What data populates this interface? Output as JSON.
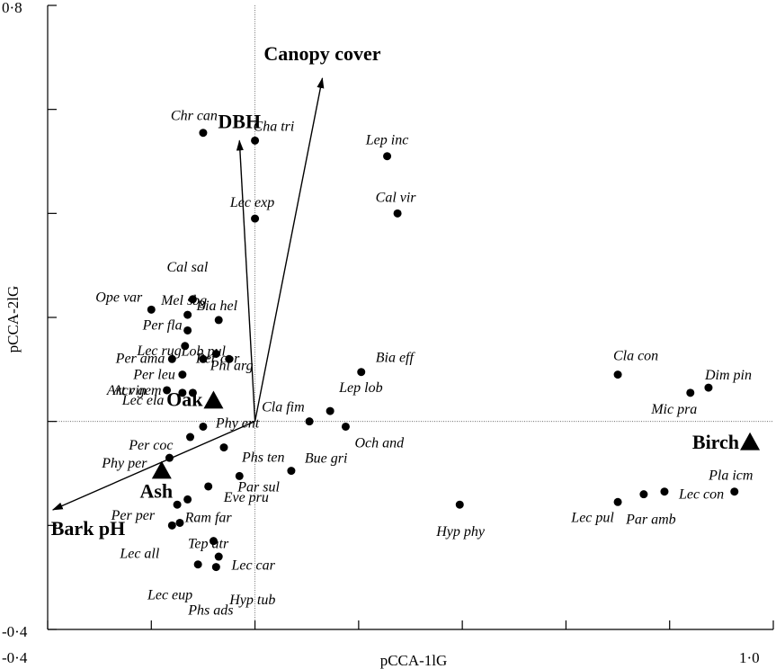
{
  "chart_data": {
    "type": "scatter",
    "xlabel": "pCCA-1lG",
    "ylabel": "pCCA-2lG",
    "xlim": [
      -0.4,
      1.0
    ],
    "ylim": [
      -0.4,
      0.8
    ],
    "x_tick_labels": [
      "-0·4",
      "1·0"
    ],
    "y_tick_labels": [
      "0·8",
      "-0·4"
    ],
    "x_ticks": [
      -0.4,
      -0.2,
      0.0,
      0.2,
      0.4,
      0.6,
      0.8,
      1.0
    ],
    "y_ticks": [
      -0.4,
      -0.2,
      0.0,
      0.2,
      0.4,
      0.6,
      0.8
    ],
    "reference_lines": {
      "x": 0,
      "y": 0
    },
    "species": [
      {
        "label": "Chr can",
        "x": -0.1,
        "y": 0.555
      },
      {
        "label": "Cha tri",
        "x": 0.0,
        "y": 0.54
      },
      {
        "label": "Lep inc",
        "x": 0.255,
        "y": 0.51
      },
      {
        "label": "Lec exp",
        "x": 0.0,
        "y": 0.39
      },
      {
        "label": "Cal vir",
        "x": 0.275,
        "y": 0.4
      },
      {
        "label": "Cal sal",
        "x": -0.12,
        "y": 0.235
      },
      {
        "label": "Mel sbg",
        "x": -0.13,
        "y": 0.205
      },
      {
        "label": "Ope var",
        "x": -0.2,
        "y": 0.215
      },
      {
        "label": "Per fla",
        "x": -0.13,
        "y": 0.175
      },
      {
        "label": "Bia hel",
        "x": -0.07,
        "y": 0.195
      },
      {
        "label": "Lec rug",
        "x": -0.135,
        "y": 0.145
      },
      {
        "label": "Lob pul",
        "x": -0.075,
        "y": 0.13
      },
      {
        "label": "Per ama",
        "x": -0.16,
        "y": 0.12
      },
      {
        "label": "Per cor",
        "x": -0.1,
        "y": 0.12
      },
      {
        "label": "Phl arg",
        "x": -0.05,
        "y": 0.12
      },
      {
        "label": "Per leu",
        "x": -0.14,
        "y": 0.09
      },
      {
        "label": "Acr gem",
        "x": -0.17,
        "y": 0.06
      },
      {
        "label": "Art vin",
        "x": -0.14,
        "y": 0.055
      },
      {
        "label": "Lec ela",
        "x": -0.12,
        "y": 0.055
      },
      {
        "label": "Bia eff",
        "x": 0.205,
        "y": 0.095
      },
      {
        "label": "Lep lob",
        "x": 0.145,
        "y": 0.02
      },
      {
        "label": "Cla fim",
        "x": 0.105,
        "y": 0.0
      },
      {
        "label": "Och and",
        "x": 0.175,
        "y": -0.01
      },
      {
        "label": "Phy ent",
        "x": -0.1,
        "y": -0.01
      },
      {
        "label": "Per coc",
        "x": -0.125,
        "y": -0.03
      },
      {
        "label": "Phy per",
        "x": -0.165,
        "y": -0.07
      },
      {
        "label": "Phs ten",
        "x": -0.06,
        "y": -0.05
      },
      {
        "label": "Bue gri",
        "x": 0.07,
        "y": -0.095
      },
      {
        "label": "Par sul",
        "x": -0.03,
        "y": -0.105
      },
      {
        "label": "Eve pru",
        "x": -0.09,
        "y": -0.125
      },
      {
        "label": "Ram far",
        "x": -0.13,
        "y": -0.15
      },
      {
        "label": "Per per",
        "x": -0.15,
        "y": -0.16
      },
      {
        "label": "Tep atr",
        "x": -0.145,
        "y": -0.195
      },
      {
        "label": "Lec all",
        "x": -0.16,
        "y": -0.2
      },
      {
        "label": "Lec car",
        "x": -0.08,
        "y": -0.23
      },
      {
        "label": "Lec eup",
        "x": -0.11,
        "y": -0.275
      },
      {
        "label": "Phs ads",
        "x": -0.075,
        "y": -0.28
      },
      {
        "label": "Hyp tub",
        "x": -0.07,
        "y": -0.26
      },
      {
        "label": "Hyp phy",
        "x": 0.395,
        "y": -0.16
      },
      {
        "label": "Cla con",
        "x": 0.7,
        "y": 0.09
      },
      {
        "label": "Dim pin",
        "x": 0.875,
        "y": 0.065
      },
      {
        "label": "Mic pra",
        "x": 0.84,
        "y": 0.055
      },
      {
        "label": "Lec pul",
        "x": 0.7,
        "y": -0.155
      },
      {
        "label": "Par amb",
        "x": 0.75,
        "y": -0.14
      },
      {
        "label": "Lec con",
        "x": 0.79,
        "y": -0.135
      },
      {
        "label": "Pla icm",
        "x": 0.925,
        "y": -0.135
      }
    ],
    "vectors": [
      {
        "label": "Canopy cover",
        "x": 0.13,
        "y": 0.66
      },
      {
        "label": "DBH",
        "x": -0.03,
        "y": 0.54
      },
      {
        "label": "Bark pH",
        "x": -0.39,
        "y": -0.17
      }
    ],
    "groups": [
      {
        "label": "Oak",
        "x": -0.08,
        "y": 0.04
      },
      {
        "label": "Ash",
        "x": -0.18,
        "y": -0.095
      },
      {
        "label": "Birch",
        "x": 0.955,
        "y": -0.04
      }
    ]
  }
}
